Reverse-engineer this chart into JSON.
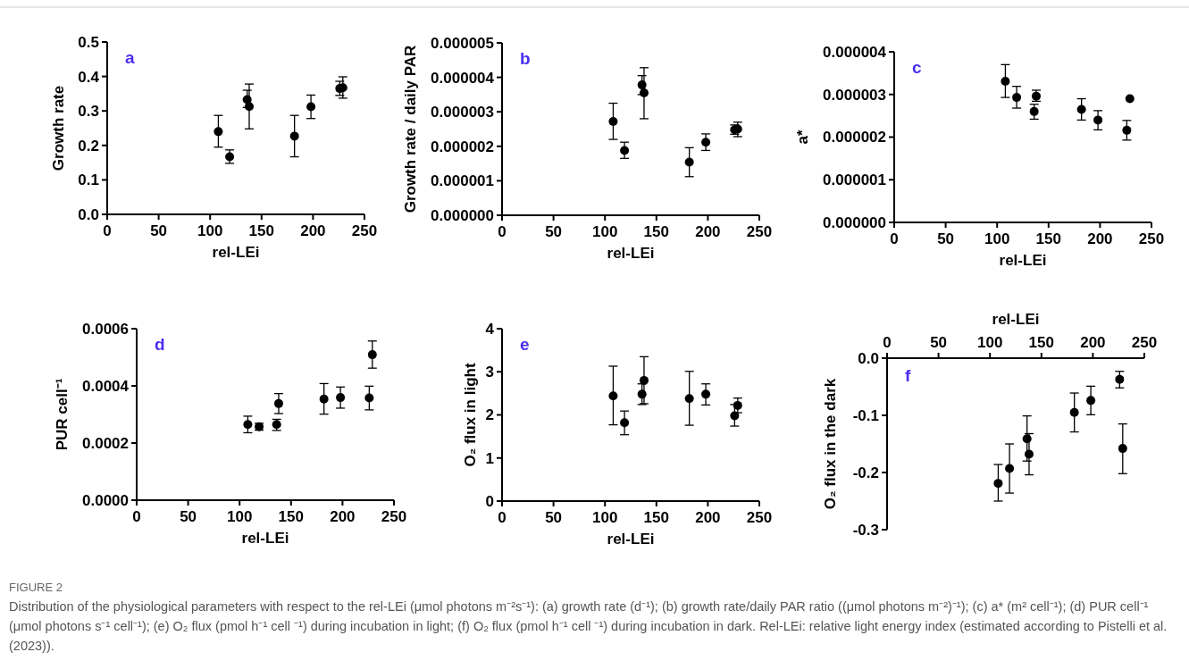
{
  "chart_data": [
    {
      "type": "scatter",
      "xlabel": "rel-LEi",
      "ylabel": "Growth rate",
      "annotations": [
        "a"
      ],
      "marker": "circle",
      "xlim": [
        0,
        250
      ],
      "xticks": [
        0,
        50,
        100,
        150,
        200,
        250
      ],
      "ylim": [
        0,
        0.5
      ],
      "yticks": [
        {
          "value": 0,
          "label": "0.0"
        },
        0.1,
        0.2,
        0.3,
        0.4,
        0.5
      ],
      "x": [
        108,
        119,
        136,
        138,
        182,
        198,
        226,
        229
      ],
      "series": [
        {
          "color": "#000000",
          "values": [
            0.24,
            0.167,
            0.333,
            0.313,
            0.227,
            0.312,
            0.365,
            0.367
          ],
          "errors": [
            [
              0.195,
              0.287
            ],
            [
              0.148,
              0.187
            ],
            [
              0.31,
              0.36
            ],
            [
              0.248,
              0.378
            ],
            [
              0.167,
              0.287
            ],
            [
              0.278,
              0.346
            ],
            [
              0.345,
              0.386
            ],
            [
              0.337,
              0.399
            ]
          ]
        }
      ]
    },
    {
      "type": "scatter",
      "xlabel": "rel-LEi",
      "ylabel": "Growth rate / daily PAR",
      "annotations": [
        "b"
      ],
      "marker": "circle",
      "xlim": [
        0,
        250
      ],
      "xticks": [
        0,
        50,
        100,
        150,
        200,
        250
      ],
      "ylim": [
        0,
        5e-06
      ],
      "yticks": [
        {
          "value": 0,
          "label": "0.000000"
        },
        {
          "value": 1e-06,
          "label": "0.000001"
        },
        {
          "value": 2e-06,
          "label": "0.000002"
        },
        {
          "value": 3e-06,
          "label": "0.000003"
        },
        {
          "value": 4e-06,
          "label": "0.000004"
        },
        {
          "value": 5e-06,
          "label": "0.000005"
        }
      ],
      "x": [
        108,
        119,
        136,
        138,
        182,
        198,
        226,
        229
      ],
      "series": [
        {
          "color": "#000000",
          "values": [
            2.72e-06,
            1.88e-06,
            3.78e-06,
            3.55e-06,
            1.54e-06,
            2.12e-06,
            2.48e-06,
            2.5e-06
          ],
          "errors": [
            [
              2.2e-06,
              3.25e-06
            ],
            [
              1.65e-06,
              2.12e-06
            ],
            [
              3.5e-06,
              4.05e-06
            ],
            [
              2.8e-06,
              4.28e-06
            ],
            [
              1.12e-06,
              1.96e-06
            ],
            [
              1.88e-06,
              2.36e-06
            ],
            [
              2.35e-06,
              2.62e-06
            ],
            [
              2.28e-06,
              2.7e-06
            ]
          ]
        }
      ]
    },
    {
      "type": "scatter",
      "xlabel": "rel-LEi",
      "ylabel": "a*",
      "annotations": [
        "c"
      ],
      "marker": "circle",
      "xlim": [
        0,
        250
      ],
      "xticks": [
        0,
        50,
        100,
        150,
        200,
        250
      ],
      "ylim": [
        0,
        4e-06
      ],
      "yticks": [
        {
          "value": 0,
          "label": "0.000000"
        },
        {
          "value": 1e-06,
          "label": "0.000001"
        },
        {
          "value": 2e-06,
          "label": "0.000002"
        },
        {
          "value": 3e-06,
          "label": "0.000003"
        },
        {
          "value": 4e-06,
          "label": "0.000004"
        }
      ],
      "x": [
        108,
        119,
        136,
        138,
        182,
        198,
        226,
        229
      ],
      "series": [
        {
          "color": "#000000",
          "values": [
            3.31e-06,
            2.93e-06,
            2.6e-06,
            2.96e-06,
            2.65e-06,
            2.4e-06,
            2.16e-06,
            2.9e-06
          ],
          "errors": [
            [
              2.93e-06,
              3.7e-06
            ],
            [
              2.68e-06,
              3.19e-06
            ],
            [
              2.42e-06,
              2.77e-06
            ],
            [
              2.84e-06,
              3.1e-06
            ],
            [
              2.4e-06,
              2.9e-06
            ],
            [
              2.17e-06,
              2.62e-06
            ],
            [
              1.93e-06,
              2.39e-06
            ],
            null
          ]
        }
      ]
    },
    {
      "type": "scatter",
      "xlabel": "rel-LEi",
      "ylabel": "PUR cell⁻¹",
      "annotations": [
        "d"
      ],
      "marker": "circle",
      "xlim": [
        0,
        250
      ],
      "xticks": [
        0,
        50,
        100,
        150,
        200,
        250
      ],
      "ylim": [
        0,
        0.0006
      ],
      "yticks": [
        {
          "value": 0,
          "label": "0.0000"
        },
        {
          "value": 0.0002,
          "label": "0.0002"
        },
        {
          "value": 0.0004,
          "label": "0.0004"
        },
        {
          "value": 0.0006,
          "label": "0.0006"
        }
      ],
      "x": [
        108,
        119,
        136,
        138,
        182,
        198,
        226,
        229
      ],
      "series": [
        {
          "color": "#000000",
          "values": [
            0.000265,
            0.000257,
            0.000265,
            0.000338,
            0.000354,
            0.000359,
            0.000358,
            0.000509
          ],
          "errors": [
            [
              0.000236,
              0.000294
            ],
            [
              0.000245,
              0.000269
            ],
            [
              0.000244,
              0.000283
            ],
            [
              0.000303,
              0.000373
            ],
            [
              0.000301,
              0.000408
            ],
            [
              0.000322,
              0.000396
            ],
            [
              0.000316,
              0.000399
            ],
            [
              0.000462,
              0.000557
            ]
          ]
        }
      ]
    },
    {
      "type": "scatter",
      "xlabel": "rel-LEi",
      "ylabel": "O₂ flux  in light",
      "annotations": [
        "e"
      ],
      "marker": "circle",
      "xlim": [
        0,
        250
      ],
      "xticks": [
        0,
        50,
        100,
        150,
        200,
        250
      ],
      "ylim": [
        0,
        4
      ],
      "yticks": [
        0,
        1,
        2,
        3,
        4
      ],
      "x": [
        108,
        119,
        136,
        138,
        182,
        198,
        226,
        229
      ],
      "series": [
        {
          "color": "#000000",
          "values": [
            2.44,
            1.82,
            2.48,
            2.8,
            2.38,
            2.48,
            1.98,
            2.22
          ],
          "errors": [
            [
              1.77,
              3.13
            ],
            [
              1.54,
              2.09
            ],
            [
              2.24,
              2.72
            ],
            [
              2.26,
              3.35
            ],
            [
              1.76,
              3.01
            ],
            [
              2.23,
              2.72
            ],
            [
              1.74,
              2.24
            ],
            [
              2.05,
              2.39
            ]
          ]
        }
      ]
    },
    {
      "type": "scatter",
      "xlabel": "rel-LEi",
      "ylabel": "O₂ flux in the dark",
      "annotations": [
        "f"
      ],
      "marker": "circle",
      "xlim": [
        0,
        250
      ],
      "xticks": [
        0,
        50,
        100,
        150,
        200,
        250
      ],
      "ylim": [
        -0.3,
        0
      ],
      "yticks": [
        -0.3,
        -0.2,
        -0.1,
        {
          "value": 0,
          "label": "0.0"
        }
      ],
      "x": [
        108,
        119,
        136,
        138,
        182,
        198,
        226,
        229
      ],
      "series": [
        {
          "color": "#000000",
          "values": [
            -0.219,
            -0.193,
            -0.141,
            -0.168,
            -0.095,
            -0.074,
            -0.037,
            -0.158
          ],
          "errors": [
            [
              -0.25,
              -0.186
            ],
            [
              -0.236,
              -0.15
            ],
            [
              -0.18,
              -0.101
            ],
            [
              -0.204,
              -0.132
            ],
            [
              -0.129,
              -0.061
            ],
            [
              -0.099,
              -0.049
            ],
            [
              -0.052,
              -0.023
            ],
            [
              -0.202,
              -0.115
            ]
          ]
        }
      ]
    },
    {
      "type": "other",
      "title": "FIGURE 2",
      "annotations": [
        "Distribution of the physiological parameters with respect to the rel-LEi (μmol photons m⁻²s⁻¹): (a) growth rate (d⁻¹); (b) growth rate/daily PAR ratio ((μmol photons m⁻²)⁻¹); (c) a* (m² cell⁻¹); (d) PUR cell⁻¹ (μmol photons s⁻¹ cell⁻¹); (e) O₂ flux (pmol h⁻¹ cell ⁻¹) during incubation in light; (f) O₂ flux (pmol h⁻¹ cell ⁻¹) during incubation in dark. Rel-LEi: relative light energy index (estimated according to Pistelli et al. (2023))."
      ]
    }
  ]
}
